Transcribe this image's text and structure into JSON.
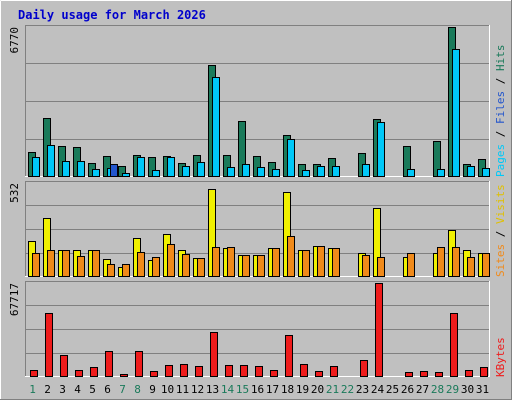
{
  "chart_data": {
    "type": "bar",
    "title": "Daily usage for March 2026",
    "days": [
      "1",
      "2",
      "3",
      "4",
      "5",
      "6",
      "7",
      "8",
      "9",
      "10",
      "11",
      "12",
      "13",
      "14",
      "15",
      "16",
      "17",
      "18",
      "19",
      "20",
      "21",
      "22",
      "23",
      "24",
      "25",
      "26",
      "27",
      "28",
      "29",
      "30",
      "31"
    ],
    "weekend_days": [
      "1",
      "7",
      "8",
      "14",
      "15",
      "21",
      "22",
      "28",
      "29"
    ],
    "panels": [
      {
        "name": "hits-files-pages",
        "ymax_label": "6770",
        "ymax": 6770,
        "side_label": [
          "Pages",
          "Files",
          "Hits"
        ],
        "series": [
          {
            "name": "Hits",
            "color": "#1a7a5a",
            "values": [
              1100,
              2650,
              1350,
              1300,
              570,
              920,
              450,
              950,
              850,
              920,
              600,
              950,
              5050,
              950,
              2500,
              920,
              650,
              1880,
              550,
              550,
              800,
              0,
              1050,
              2600,
              0,
              1350,
              0,
              1600,
              6770,
              560,
              750
            ]
          },
          {
            "name": "Files",
            "color": "#00c8f8",
            "values": [
              850,
              1400,
              700,
              700,
              300,
              350,
              150,
              850,
              250,
              850,
              450,
              650,
              4500,
              400,
              550,
              400,
              300,
              1680,
              250,
              450,
              450,
              0,
              530,
              2450,
              0,
              300,
              0,
              300,
              5750,
              450,
              350
            ]
          },
          {
            "name": "Pages",
            "color": "#2255cc",
            "values": [
              0,
              0,
              0,
              0,
              0,
              550,
              0,
              0,
              0,
              0,
              0,
              0,
              0,
              0,
              0,
              0,
              0,
              0,
              0,
              0,
              0,
              0,
              0,
              0,
              0,
              0,
              0,
              0,
              0,
              0,
              0
            ]
          }
        ]
      },
      {
        "name": "visits-sites",
        "ymax_label": "532",
        "ymax": 532,
        "side_label": [
          "Sites",
          "Visits"
        ],
        "series": [
          {
            "name": "Visits",
            "color": "#f0f000",
            "values": [
              200,
              330,
              150,
              150,
              150,
              100,
              50,
              215,
              90,
              240,
              150,
              105,
              500,
              160,
              120,
              120,
              160,
              480,
              150,
              170,
              160,
              0,
              130,
              390,
              0,
              110,
              0,
              130,
              265,
              150,
              130
            ]
          },
          {
            "name": "Sites",
            "color": "#f08a1a",
            "values": [
              130,
              150,
              150,
              115,
              150,
              70,
              70,
              140,
              110,
              185,
              125,
              105,
              165,
              165,
              120,
              120,
              160,
              230,
              150,
              170,
              160,
              0,
              120,
              110,
              0,
              130,
              0,
              165,
              165,
              110,
              130
            ]
          }
        ]
      },
      {
        "name": "kbytes",
        "ymax_label": "67717",
        "ymax": 67717,
        "side_label": [
          "KBytes"
        ],
        "series": [
          {
            "name": "KBytes",
            "color": "#ee1c1c",
            "values": [
              4500,
              46000,
              15000,
              4500,
              6500,
              18000,
              1500,
              18000,
              3500,
              8000,
              9000,
              7500,
              32000,
              8000,
              8000,
              7500,
              4500,
              30000,
              9000,
              4000,
              7000,
              0,
              11500,
              67717,
              0,
              3000,
              4000,
              3000,
              46000,
              4500,
              6500
            ]
          }
        ]
      }
    ]
  }
}
